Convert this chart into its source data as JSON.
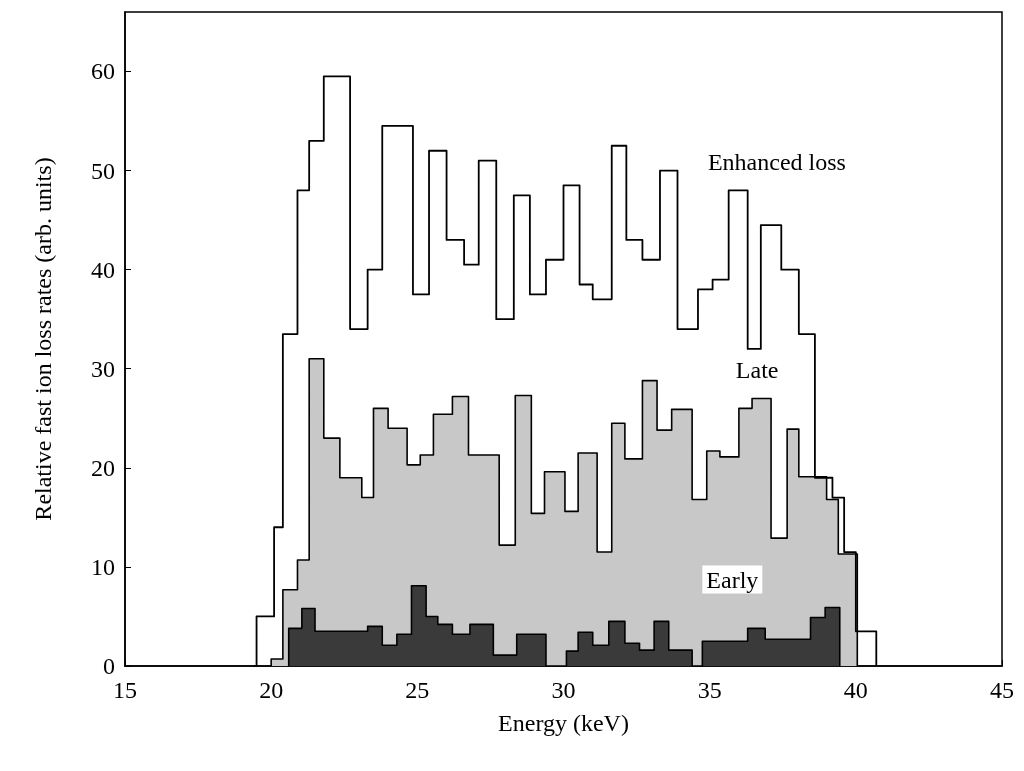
{
  "chart_data": {
    "type": "step",
    "xlabel": "Energy (keV)",
    "ylabel": "Relative fast ion loss rates (arb. units)",
    "xlim": [
      15,
      45
    ],
    "xticks": [
      15,
      20,
      25,
      30,
      35,
      40,
      45
    ],
    "ylim": [
      0,
      66
    ],
    "yticks": [
      0,
      10,
      20,
      30,
      40,
      50,
      60
    ],
    "grid": false,
    "legend": false,
    "series": [
      {
        "name": "Late",
        "type": "histogram",
        "color": "#c8c8c8",
        "bins": [
          20.0,
          20.4,
          20.9,
          21.3,
          21.8,
          22.35,
          23.1,
          23.5,
          24.0,
          24.65,
          25.1,
          25.55,
          26.2,
          26.75,
          27.8,
          28.35,
          28.9,
          29.35,
          30.05,
          30.5,
          31.15,
          31.65,
          32.1,
          32.7,
          33.2,
          33.7,
          34.4,
          34.9,
          35.35,
          36.0,
          36.45,
          37.1,
          37.65,
          38.05,
          39.0,
          39.4,
          40.05
        ],
        "values": [
          0.7,
          7.7,
          10.7,
          31,
          23,
          19,
          17,
          26,
          24,
          20.3,
          21.3,
          25.4,
          27.2,
          21.3,
          12.2,
          27.3,
          15.4,
          19.6,
          15.6,
          21.5,
          11.5,
          24.5,
          20.9,
          28.8,
          23.8,
          25.9,
          16.8,
          21.7,
          21.1,
          26,
          27,
          12.9,
          23.9,
          19.1,
          16.8,
          11.3
        ]
      },
      {
        "name": "Early",
        "type": "histogram",
        "color": "#3a3a3a",
        "bins": [
          20.6,
          21.05,
          21.5,
          23.3,
          23.8,
          24.3,
          24.8,
          25.3,
          25.7,
          26.2,
          26.8,
          27.6,
          28.4,
          29.4,
          30.1,
          30.5,
          31.0,
          31.55,
          32.1,
          32.6,
          33.1,
          33.6,
          34.4,
          34.75,
          36.3,
          36.9,
          38.45,
          38.95,
          39.45
        ],
        "values": [
          3.8,
          5.8,
          3.5,
          4,
          2.1,
          3.2,
          8.1,
          5,
          4.2,
          3.2,
          4.2,
          1.1,
          3.2,
          0,
          1.5,
          3.4,
          2.1,
          4.5,
          2.3,
          1.6,
          4.5,
          1.6,
          0,
          2.5,
          3.8,
          2.7,
          4.9,
          5.9
        ]
      },
      {
        "name": "Enhanced loss",
        "color": "#000000",
        "x": [
          19.4,
          19.5,
          20.1,
          20.4,
          20.9,
          21.3,
          21.8,
          22.7,
          23.3,
          23.8,
          24.85,
          25.4,
          26.0,
          26.6,
          27.1,
          27.7,
          28.3,
          28.85,
          29.4,
          30.0,
          30.55,
          31.0,
          31.65,
          32.15,
          32.7,
          33.3,
          33.9,
          34.6,
          35.1,
          35.65,
          36.3,
          36.75,
          37.45,
          38.05,
          38.6,
          39.2,
          39.6,
          40.0,
          40.7
        ],
        "values": [
          0,
          5,
          14,
          33.5,
          48,
          53,
          59.5,
          34,
          40,
          54.5,
          37.5,
          52,
          43,
          40.5,
          51,
          35,
          47.5,
          37.5,
          41,
          48.5,
          38.5,
          37,
          52.5,
          43,
          41,
          50,
          34,
          38,
          39,
          48,
          32,
          44.5,
          40,
          33.5,
          19,
          17,
          11.5,
          3.5,
          0
        ]
      }
    ]
  }
}
